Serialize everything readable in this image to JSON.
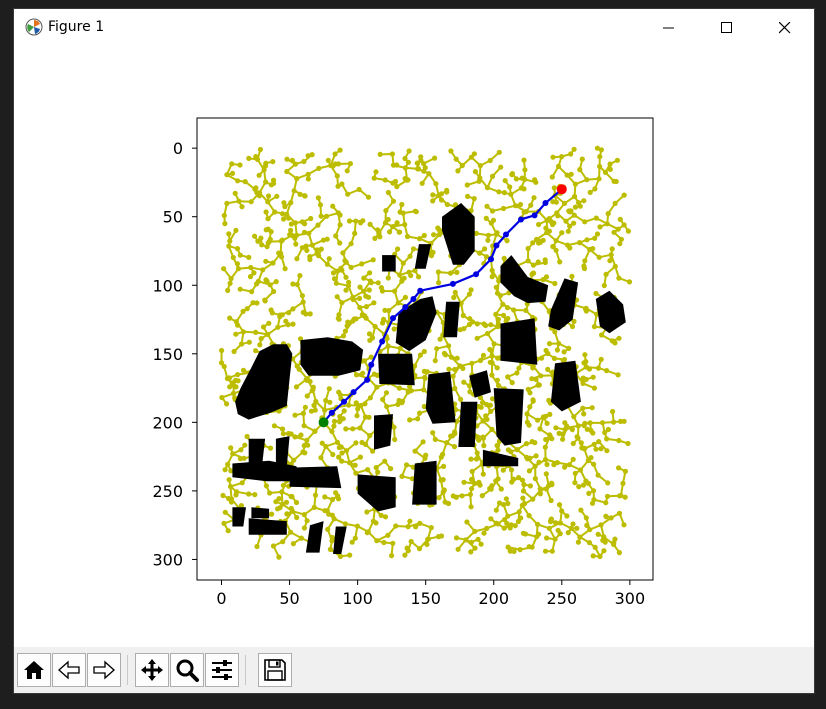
{
  "window": {
    "title": "Figure 1",
    "controls": [
      "minimize",
      "maximize",
      "close"
    ]
  },
  "plot": {
    "x_ticks": [
      "0",
      "50",
      "100",
      "150",
      "200",
      "250",
      "300"
    ],
    "y_ticks": [
      "0",
      "50",
      "100",
      "150",
      "200",
      "250",
      "300"
    ],
    "colors": {
      "tree": "#bdbd00",
      "path": "#0000e0",
      "start": "#008000",
      "goal": "#ff0000",
      "obstacle": "#000000"
    }
  },
  "chart_data": {
    "type": "scatter",
    "xlim": [
      -18,
      317
    ],
    "ylim": [
      315,
      -22
    ],
    "x_ticks": [
      0,
      50,
      100,
      150,
      200,
      250,
      300
    ],
    "y_ticks": [
      0,
      50,
      100,
      150,
      200,
      250,
      300
    ],
    "start": [
      75,
      200
    ],
    "goal": [
      250,
      30
    ],
    "path": [
      [
        75,
        200
      ],
      [
        81,
        193
      ],
      [
        90,
        185
      ],
      [
        97,
        178
      ],
      [
        107,
        169
      ],
      [
        110,
        158
      ],
      [
        118,
        141
      ],
      [
        126,
        124
      ],
      [
        135,
        116
      ],
      [
        141,
        110
      ],
      [
        146,
        104
      ],
      [
        170,
        99
      ],
      [
        187,
        92
      ],
      [
        198,
        81
      ],
      [
        202,
        71
      ],
      [
        209,
        63
      ],
      [
        220,
        52
      ],
      [
        230,
        49
      ],
      [
        238,
        40
      ],
      [
        250,
        30
      ]
    ],
    "obstacles": [
      [
        [
          10,
          185
        ],
        [
          14,
          175
        ],
        [
          22,
          160
        ],
        [
          28,
          148
        ],
        [
          38,
          143
        ],
        [
          48,
          143
        ],
        [
          52,
          150
        ],
        [
          50,
          168
        ],
        [
          48,
          188
        ],
        [
          36,
          193
        ],
        [
          20,
          198
        ],
        [
          12,
          194
        ]
      ],
      [
        [
          58,
          140
        ],
        [
          78,
          138
        ],
        [
          96,
          141
        ],
        [
          104,
          147
        ],
        [
          102,
          162
        ],
        [
          86,
          166
        ],
        [
          64,
          166
        ],
        [
          58,
          158
        ]
      ],
      [
        [
          115,
          150
        ],
        [
          140,
          150
        ],
        [
          142,
          173
        ],
        [
          116,
          172
        ]
      ],
      [
        [
          130,
          120
        ],
        [
          146,
          110
        ],
        [
          155,
          108
        ],
        [
          158,
          120
        ],
        [
          150,
          140
        ],
        [
          138,
          148
        ],
        [
          128,
          142
        ]
      ],
      [
        [
          165,
          112
        ],
        [
          175,
          112
        ],
        [
          173,
          138
        ],
        [
          163,
          138
        ]
      ],
      [
        [
          162,
          50
        ],
        [
          176,
          40
        ],
        [
          186,
          50
        ],
        [
          186,
          75
        ],
        [
          178,
          85
        ],
        [
          170,
          85
        ],
        [
          162,
          60
        ]
      ],
      [
        [
          205,
          86
        ],
        [
          213,
          78
        ],
        [
          225,
          94
        ],
        [
          240,
          100
        ],
        [
          238,
          112
        ],
        [
          225,
          113
        ],
        [
          215,
          108
        ],
        [
          205,
          98
        ]
      ],
      [
        [
          242,
          118
        ],
        [
          252,
          95
        ],
        [
          262,
          98
        ],
        [
          258,
          125
        ],
        [
          248,
          133
        ],
        [
          240,
          130
        ]
      ],
      [
        [
          275,
          110
        ],
        [
          285,
          104
        ],
        [
          295,
          114
        ],
        [
          297,
          127
        ],
        [
          285,
          135
        ],
        [
          278,
          130
        ]
      ],
      [
        [
          205,
          128
        ],
        [
          230,
          124
        ],
        [
          232,
          158
        ],
        [
          205,
          155
        ]
      ],
      [
        [
          245,
          157
        ],
        [
          260,
          155
        ],
        [
          264,
          185
        ],
        [
          250,
          192
        ],
        [
          242,
          185
        ]
      ],
      [
        [
          152,
          165
        ],
        [
          168,
          163
        ],
        [
          172,
          200
        ],
        [
          155,
          201
        ],
        [
          150,
          190
        ]
      ],
      [
        [
          182,
          166
        ],
        [
          195,
          162
        ],
        [
          198,
          178
        ],
        [
          186,
          182
        ]
      ],
      [
        [
          176,
          185
        ],
        [
          188,
          185
        ],
        [
          186,
          218
        ],
        [
          174,
          218
        ]
      ],
      [
        [
          200,
          175
        ],
        [
          222,
          176
        ],
        [
          220,
          215
        ],
        [
          208,
          217
        ],
        [
          202,
          210
        ]
      ],
      [
        [
          112,
          195
        ],
        [
          126,
          194
        ],
        [
          124,
          217
        ],
        [
          112,
          220
        ]
      ],
      [
        [
          142,
          230
        ],
        [
          158,
          228
        ],
        [
          158,
          260
        ],
        [
          140,
          260
        ]
      ],
      [
        [
          192,
          220
        ],
        [
          218,
          226
        ],
        [
          218,
          232
        ],
        [
          192,
          232
        ]
      ],
      [
        [
          8,
          230
        ],
        [
          35,
          228
        ],
        [
          55,
          232
        ],
        [
          58,
          243
        ],
        [
          33,
          243
        ],
        [
          8,
          240
        ]
      ],
      [
        [
          20,
          212
        ],
        [
          32,
          212
        ],
        [
          30,
          230
        ],
        [
          20,
          230
        ]
      ],
      [
        [
          40,
          212
        ],
        [
          50,
          210
        ],
        [
          48,
          232
        ],
        [
          40,
          232
        ]
      ],
      [
        [
          50,
          233
        ],
        [
          85,
          232
        ],
        [
          88,
          248
        ],
        [
          50,
          247
        ]
      ],
      [
        [
          100,
          238
        ],
        [
          128,
          240
        ],
        [
          128,
          262
        ],
        [
          115,
          265
        ],
        [
          100,
          252
        ]
      ],
      [
        [
          8,
          262
        ],
        [
          18,
          262
        ],
        [
          16,
          276
        ],
        [
          8,
          276
        ]
      ],
      [
        [
          20,
          270
        ],
        [
          48,
          272
        ],
        [
          48,
          282
        ],
        [
          20,
          282
        ]
      ],
      [
        [
          22,
          262
        ],
        [
          35,
          263
        ],
        [
          35,
          270
        ],
        [
          22,
          270
        ]
      ],
      [
        [
          65,
          275
        ],
        [
          75,
          272
        ],
        [
          72,
          295
        ],
        [
          62,
          295
        ]
      ],
      [
        [
          84,
          276
        ],
        [
          92,
          276
        ],
        [
          88,
          296
        ],
        [
          82,
          296
        ]
      ],
      [
        [
          145,
          70
        ],
        [
          154,
          70
        ],
        [
          150,
          88
        ],
        [
          142,
          88
        ]
      ],
      [
        [
          118,
          78
        ],
        [
          128,
          78
        ],
        [
          128,
          90
        ],
        [
          118,
          90
        ]
      ]
    ]
  }
}
